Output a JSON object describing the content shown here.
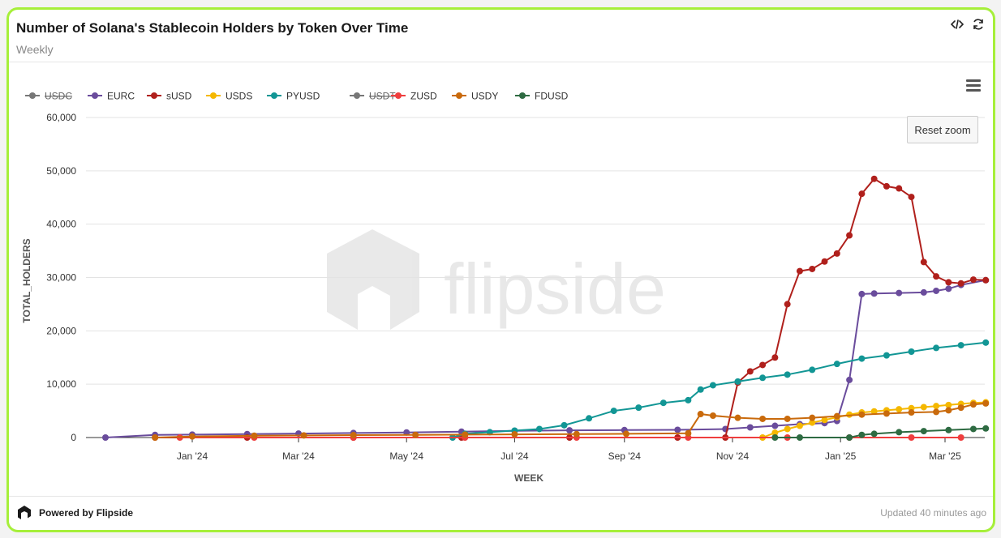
{
  "header": {
    "title": "Number of Solana's Stablecoin Holders by Token Over Time",
    "subtitle": "Weekly",
    "code_icon": "code-icon",
    "refresh_icon": "refresh-icon"
  },
  "toolbar": {
    "reset_zoom_label": "Reset zoom",
    "menu_icon": "hamburger-menu-icon"
  },
  "watermark": {
    "text": "flipside"
  },
  "footer": {
    "brand": "Powered by Flipside",
    "updated": "Updated 40 minutes ago"
  },
  "chart_data": {
    "type": "line",
    "xlabel": "WEEK",
    "ylabel": "TOTAL_HOLDERS",
    "ylim": [
      0,
      60000
    ],
    "yticks": [
      "0",
      "10,000",
      "20,000",
      "30,000",
      "40,000",
      "50,000",
      "60,000"
    ],
    "xticks": [
      "Jan '24",
      "Mar '24",
      "May '24",
      "Jul '24",
      "Sep '24",
      "Nov '24",
      "Jan '25",
      "Mar '25"
    ],
    "grid": true,
    "legend_position": "top-left",
    "series": [
      {
        "name": "USDC",
        "color": "#666666",
        "hidden": true,
        "points": []
      },
      {
        "name": "EURC",
        "color": "#6a4c9c",
        "hidden": false,
        "points": [
          [
            "2023-11-13",
            0
          ],
          [
            "2023-12-11",
            500
          ],
          [
            "2024-01-01",
            550
          ],
          [
            "2024-02-01",
            650
          ],
          [
            "2024-03-01",
            750
          ],
          [
            "2024-04-01",
            850
          ],
          [
            "2024-05-01",
            950
          ],
          [
            "2024-06-01",
            1100
          ],
          [
            "2024-07-01",
            1250
          ],
          [
            "2024-08-01",
            1350
          ],
          [
            "2024-09-01",
            1400
          ],
          [
            "2024-10-01",
            1450
          ],
          [
            "2024-10-28",
            1600
          ],
          [
            "2024-11-11",
            1900
          ],
          [
            "2024-11-25",
            2200
          ],
          [
            "2024-12-09",
            2500
          ],
          [
            "2024-12-23",
            2700
          ],
          [
            "2024-12-30",
            3100
          ],
          [
            "2025-01-06",
            10800
          ],
          [
            "2025-01-13",
            26900
          ],
          [
            "2025-01-20",
            27000
          ],
          [
            "2025-02-03",
            27100
          ],
          [
            "2025-02-17",
            27200
          ],
          [
            "2025-02-24",
            27500
          ],
          [
            "2025-03-03",
            27900
          ],
          [
            "2025-03-10",
            28600
          ],
          [
            "2025-03-24",
            29500
          ]
        ]
      },
      {
        "name": "sUSD",
        "color": "#b0201c",
        "hidden": false,
        "points": [
          [
            "2023-12-11",
            0
          ],
          [
            "2024-02-01",
            0
          ],
          [
            "2024-04-01",
            0
          ],
          [
            "2024-06-01",
            0
          ],
          [
            "2024-08-01",
            0
          ],
          [
            "2024-10-01",
            0
          ],
          [
            "2024-10-28",
            0
          ],
          [
            "2024-11-04",
            10300
          ],
          [
            "2024-11-11",
            12400
          ],
          [
            "2024-11-18",
            13600
          ],
          [
            "2024-11-25",
            15000
          ],
          [
            "2024-12-02",
            25000
          ],
          [
            "2024-12-09",
            31200
          ],
          [
            "2024-12-16",
            31600
          ],
          [
            "2024-12-23",
            33000
          ],
          [
            "2024-12-30",
            34500
          ],
          [
            "2025-01-06",
            37900
          ],
          [
            "2025-01-13",
            45700
          ],
          [
            "2025-01-20",
            48500
          ],
          [
            "2025-01-27",
            47100
          ],
          [
            "2025-02-03",
            46700
          ],
          [
            "2025-02-10",
            45100
          ],
          [
            "2025-02-17",
            32900
          ],
          [
            "2025-02-24",
            30200
          ],
          [
            "2025-03-03",
            29100
          ],
          [
            "2025-03-10",
            28900
          ],
          [
            "2025-03-17",
            29600
          ],
          [
            "2025-03-24",
            29500
          ]
        ]
      },
      {
        "name": "USDS",
        "color": "#f5b800",
        "hidden": false,
        "points": [
          [
            "2024-11-18",
            0
          ],
          [
            "2024-11-25",
            900
          ],
          [
            "2024-12-02",
            1600
          ],
          [
            "2024-12-09",
            2200
          ],
          [
            "2024-12-16",
            2800
          ],
          [
            "2024-12-23",
            3300
          ],
          [
            "2024-12-30",
            3800
          ],
          [
            "2025-01-06",
            4300
          ],
          [
            "2025-01-13",
            4700
          ],
          [
            "2025-01-20",
            4900
          ],
          [
            "2025-01-27",
            5100
          ],
          [
            "2025-02-03",
            5300
          ],
          [
            "2025-02-10",
            5500
          ],
          [
            "2025-02-17",
            5700
          ],
          [
            "2025-02-24",
            5900
          ],
          [
            "2025-03-03",
            6100
          ],
          [
            "2025-03-10",
            6300
          ],
          [
            "2025-03-17",
            6500
          ],
          [
            "2025-03-24",
            6600
          ]
        ]
      },
      {
        "name": "PYUSD",
        "color": "#129695",
        "hidden": false,
        "points": [
          [
            "2024-05-27",
            0
          ],
          [
            "2024-06-03",
            700
          ],
          [
            "2024-06-17",
            1000
          ],
          [
            "2024-07-01",
            1300
          ],
          [
            "2024-07-15",
            1600
          ],
          [
            "2024-07-29",
            2300
          ],
          [
            "2024-08-12",
            3600
          ],
          [
            "2024-08-26",
            5000
          ],
          [
            "2024-09-09",
            5600
          ],
          [
            "2024-09-23",
            6500
          ],
          [
            "2024-10-07",
            7000
          ],
          [
            "2024-10-14",
            9000
          ],
          [
            "2024-10-21",
            9800
          ],
          [
            "2024-11-04",
            10500
          ],
          [
            "2024-11-18",
            11200
          ],
          [
            "2024-12-02",
            11800
          ],
          [
            "2024-12-16",
            12700
          ],
          [
            "2024-12-30",
            13800
          ],
          [
            "2025-01-13",
            14800
          ],
          [
            "2025-01-27",
            15400
          ],
          [
            "2025-02-10",
            16100
          ],
          [
            "2025-02-24",
            16800
          ],
          [
            "2025-03-10",
            17300
          ],
          [
            "2025-03-24",
            17800
          ]
        ]
      },
      {
        "name": "USDT",
        "color": "#666666",
        "hidden": true,
        "points": []
      },
      {
        "name": "ZUSD",
        "color": "#ef3e3e",
        "hidden": false,
        "points": [
          [
            "2023-12-25",
            0
          ],
          [
            "2024-02-05",
            0
          ],
          [
            "2024-04-01",
            0
          ],
          [
            "2024-06-03",
            0
          ],
          [
            "2024-08-05",
            0
          ],
          [
            "2024-10-07",
            0
          ],
          [
            "2024-12-02",
            0
          ],
          [
            "2025-01-06",
            0
          ],
          [
            "2025-02-10",
            0
          ],
          [
            "2025-03-10",
            0
          ]
        ]
      },
      {
        "name": "USDY",
        "color": "#c96a0c",
        "hidden": false,
        "points": [
          [
            "2023-12-11",
            0
          ],
          [
            "2024-01-01",
            200
          ],
          [
            "2024-02-05",
            350
          ],
          [
            "2024-03-04",
            400
          ],
          [
            "2024-04-01",
            450
          ],
          [
            "2024-05-06",
            500
          ],
          [
            "2024-06-03",
            550
          ],
          [
            "2024-07-01",
            600
          ],
          [
            "2024-08-05",
            650
          ],
          [
            "2024-09-02",
            700
          ],
          [
            "2024-10-07",
            800
          ],
          [
            "2024-10-14",
            4400
          ],
          [
            "2024-10-21",
            4100
          ],
          [
            "2024-11-04",
            3700
          ],
          [
            "2024-11-18",
            3500
          ],
          [
            "2024-12-02",
            3500
          ],
          [
            "2024-12-16",
            3700
          ],
          [
            "2024-12-30",
            4000
          ],
          [
            "2025-01-13",
            4300
          ],
          [
            "2025-01-27",
            4500
          ],
          [
            "2025-02-10",
            4700
          ],
          [
            "2025-02-24",
            4800
          ],
          [
            "2025-03-03",
            5100
          ],
          [
            "2025-03-10",
            5600
          ],
          [
            "2025-03-17",
            6200
          ],
          [
            "2025-03-24",
            6400
          ]
        ]
      },
      {
        "name": "FDUSD",
        "color": "#2e6b42",
        "hidden": false,
        "points": [
          [
            "2024-11-25",
            0
          ],
          [
            "2024-12-09",
            0
          ],
          [
            "2025-01-06",
            0
          ],
          [
            "2025-01-13",
            500
          ],
          [
            "2025-01-20",
            700
          ],
          [
            "2025-02-03",
            1000
          ],
          [
            "2025-02-17",
            1200
          ],
          [
            "2025-03-03",
            1400
          ],
          [
            "2025-03-17",
            1600
          ],
          [
            "2025-03-24",
            1700
          ]
        ]
      }
    ]
  }
}
